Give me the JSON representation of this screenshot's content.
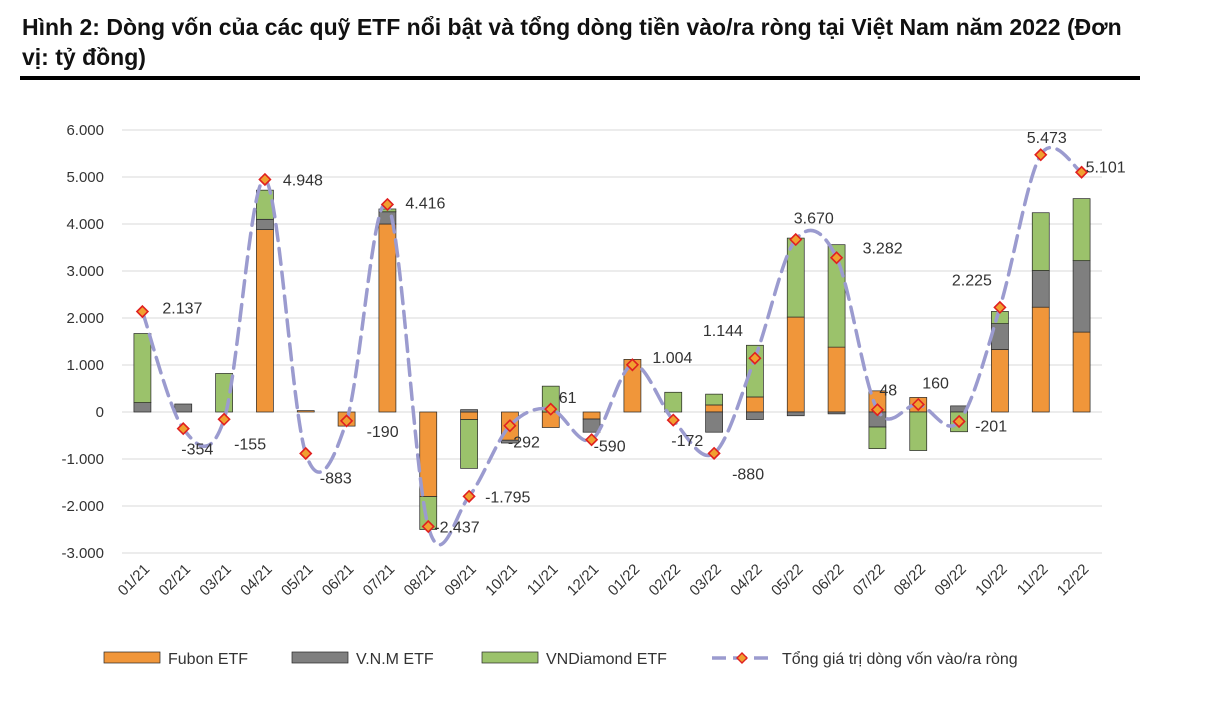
{
  "chart_data": {
    "type": "bar",
    "stacked": true,
    "title": "Hình 2: Dòng vốn của các quỹ ETF nổi bật và tổng dòng tiền vào/ra ròng tại Việt Nam năm 2022 (Đơn vị: tỷ đồng)",
    "categories": [
      "01/21",
      "02/21",
      "03/21",
      "04/21",
      "05/21",
      "06/21",
      "07/21",
      "08/21",
      "09/21",
      "10/21",
      "11/21",
      "12/21",
      "01/22",
      "02/22",
      "03/22",
      "04/22",
      "05/22",
      "06/22",
      "07/22",
      "08/22",
      "09/22",
      "10/22",
      "11/22",
      "12/22"
    ],
    "ylim": [
      -3000,
      6000
    ],
    "yticks": [
      6000,
      5000,
      4000,
      3000,
      2000,
      1000,
      0,
      -1000,
      -2000,
      -3000
    ],
    "ytick_labels": [
      "6.000",
      "5.000",
      "4.000",
      "3.000",
      "2.000",
      "1.000",
      "0",
      "-1.000",
      "-2.000",
      "-3.000"
    ],
    "series": [
      {
        "name": "Fubon ETF",
        "color": "#F0963A",
        "values": [
          0,
          0,
          0,
          3880,
          30,
          -300,
          4000,
          -1800,
          -160,
          -600,
          -330,
          -150,
          1120,
          0,
          150,
          320,
          2020,
          1380,
          450,
          310,
          0,
          1330,
          2230,
          1700
        ]
      },
      {
        "name": "V.N.M ETF",
        "color": "#7F7F7F",
        "values": [
          200,
          170,
          0,
          220,
          0,
          0,
          260,
          0,
          50,
          -60,
          0,
          -280,
          0,
          0,
          -430,
          -160,
          -80,
          -40,
          -320,
          0,
          130,
          550,
          780,
          1520
        ]
      },
      {
        "name": "VNDiamond ETF",
        "color": "#9BC26B",
        "values": [
          1470,
          0,
          820,
          620,
          0,
          0,
          60,
          -700,
          -1040,
          0,
          550,
          0,
          0,
          420,
          230,
          1100,
          1680,
          2180,
          -460,
          -820,
          -420,
          260,
          1230,
          1320
        ]
      }
    ],
    "line": {
      "name": "Tổng giá trị dòng vốn vào/ra ròng",
      "color": "#9B9BCF",
      "values": [
        2137,
        -354,
        -155,
        4948,
        -883,
        -190,
        4416,
        -2437,
        -1795,
        -292,
        61,
        -590,
        1004,
        -172,
        -880,
        1144,
        3670,
        3282,
        48,
        160,
        -201,
        2225,
        5473,
        5101
      ],
      "labels": [
        "2.137",
        "-354",
        "-155",
        "4.948",
        "-883",
        "-190",
        "4.416",
        "-2.437",
        "-1.795",
        "-292",
        "61",
        "-590",
        "1.004",
        "-172",
        "-880",
        "1.144",
        "3.670",
        "3.282",
        "48",
        "160",
        "-201",
        "2.225",
        "5.473",
        "5.101"
      ]
    },
    "legend": [
      "Fubon ETF",
      "V.N.M ETF",
      "VNDiamond ETF",
      "Tổng giá trị dòng vốn vào/ra ròng"
    ],
    "legend_position": "bottom"
  }
}
